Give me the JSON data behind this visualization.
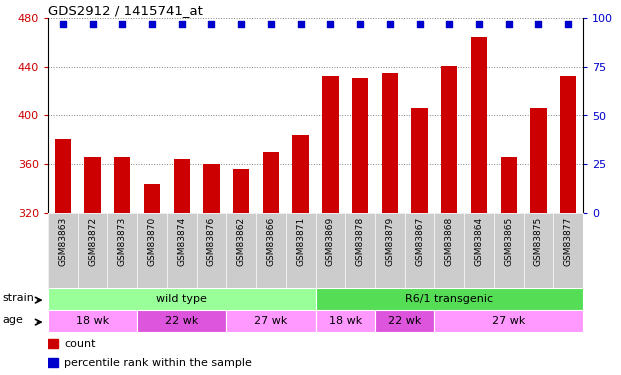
{
  "title": "GDS2912 / 1415741_at",
  "samples": [
    "GSM83863",
    "GSM83872",
    "GSM83873",
    "GSM83870",
    "GSM83874",
    "GSM83876",
    "GSM83862",
    "GSM83866",
    "GSM83871",
    "GSM83869",
    "GSM83878",
    "GSM83879",
    "GSM83867",
    "GSM83868",
    "GSM83864",
    "GSM83865",
    "GSM83875",
    "GSM83877"
  ],
  "counts": [
    381,
    366,
    366,
    344,
    364,
    360,
    356,
    370,
    384,
    432,
    431,
    435,
    406,
    441,
    464,
    366,
    406,
    432
  ],
  "percentiles": [
    97,
    97,
    97,
    97,
    97,
    97,
    97,
    97,
    97,
    97,
    97,
    97,
    97,
    97,
    97,
    97,
    97,
    97
  ],
  "bar_color": "#cc0000",
  "dot_color": "#0000cc",
  "ymin": 320,
  "ymax": 480,
  "y2min": 0,
  "y2max": 100,
  "yticks": [
    320,
    360,
    400,
    440,
    480
  ],
  "y2ticks": [
    0,
    25,
    50,
    75,
    100
  ],
  "strain_groups": [
    {
      "label": "wild type",
      "start": 0,
      "end": 9,
      "color": "#99ff99"
    },
    {
      "label": "R6/1 transgenic",
      "start": 9,
      "end": 18,
      "color": "#55dd55"
    }
  ],
  "age_groups": [
    {
      "label": "18 wk",
      "start": 0,
      "end": 3,
      "color": "#ff99ff"
    },
    {
      "label": "22 wk",
      "start": 3,
      "end": 6,
      "color": "#dd55dd"
    },
    {
      "label": "27 wk",
      "start": 6,
      "end": 9,
      "color": "#ff99ff"
    },
    {
      "label": "18 wk",
      "start": 9,
      "end": 11,
      "color": "#ff99ff"
    },
    {
      "label": "22 wk",
      "start": 11,
      "end": 13,
      "color": "#dd55dd"
    },
    {
      "label": "27 wk",
      "start": 13,
      "end": 18,
      "color": "#ff99ff"
    }
  ],
  "tick_bg_color": "#cccccc",
  "legend_count_color": "#cc0000",
  "legend_pct_color": "#0000cc"
}
